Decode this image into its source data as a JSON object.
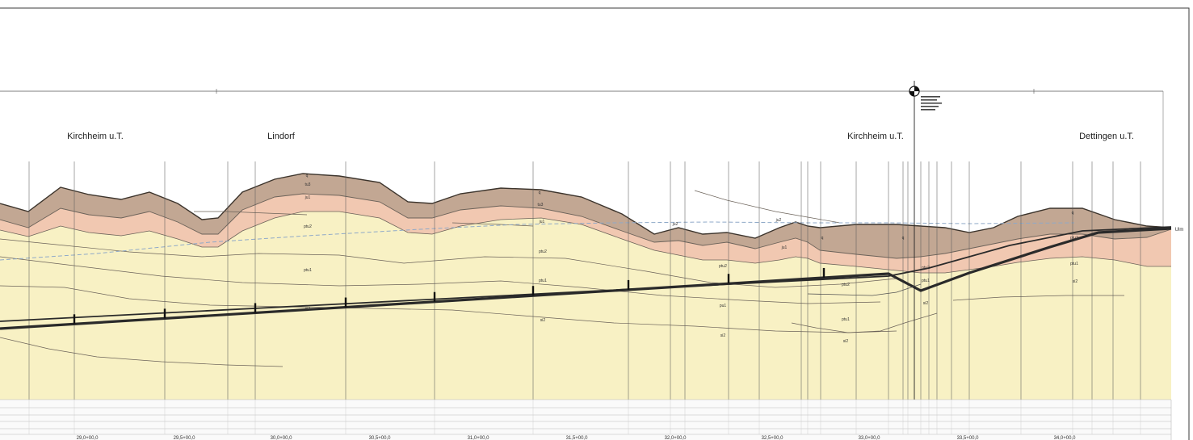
{
  "places": [
    {
      "id": "kirchheim-1",
      "name": "Kirchheim u.T."
    },
    {
      "id": "lindorf",
      "name": "Lindorf"
    },
    {
      "id": "kirchheim-2",
      "name": "Kirchheim u.T."
    },
    {
      "id": "dettingen",
      "name": "Dettingen u.T."
    }
  ],
  "chainage_labels": [
    "29,0+00,0",
    "29,5+00,0",
    "30,0+00,0",
    "30,5+00,0",
    "31,0+00,0",
    "31,5+00,0",
    "32,0+00,0",
    "32,5+00,0",
    "33,0+00,0",
    "33,5+00,0",
    "34,0+00,0"
  ],
  "layer_labels": [
    {
      "id": "l1",
      "text": "q"
    },
    {
      "id": "l2",
      "text": "tu3"
    },
    {
      "id": "l3",
      "text": "ju1"
    },
    {
      "id": "l4",
      "text": "ptu2"
    },
    {
      "id": "l5",
      "text": "ptu1"
    },
    {
      "id": "l6",
      "text": "si2"
    },
    {
      "id": "l7",
      "text": "q"
    },
    {
      "id": "l8",
      "text": "tu3"
    },
    {
      "id": "l9",
      "text": "ju1"
    },
    {
      "id": "l10",
      "text": "ptu2"
    },
    {
      "id": "l11",
      "text": "ptu1"
    },
    {
      "id": "l12",
      "text": "si2"
    },
    {
      "id": "l13",
      "text": "ju2"
    },
    {
      "id": "l14",
      "text": "ptu2"
    },
    {
      "id": "l15",
      "text": "pu1"
    },
    {
      "id": "l16",
      "text": "si2"
    },
    {
      "id": "l17",
      "text": "ju2"
    },
    {
      "id": "l18",
      "text": "q"
    },
    {
      "id": "l19",
      "text": "ju1"
    },
    {
      "id": "l20",
      "text": "q"
    },
    {
      "id": "l21",
      "text": "ptu2"
    },
    {
      "id": "l22",
      "text": "ptu1"
    },
    {
      "id": "l23",
      "text": "si2"
    },
    {
      "id": "l24",
      "text": "ptu2"
    },
    {
      "id": "l25",
      "text": "ptu1"
    },
    {
      "id": "l26",
      "text": "si2"
    },
    {
      "id": "l27",
      "text": "q"
    },
    {
      "id": "l28",
      "text": "ptu2"
    },
    {
      "id": "l29",
      "text": "ptu1"
    },
    {
      "id": "l30",
      "text": "si2"
    }
  ],
  "endpoint_label": "Ulm",
  "colors": {
    "background": "#ffffff",
    "frame": "#3a3a3a",
    "quaternary": "#c2a793",
    "upper_layer": "#f1c8b1",
    "lower_layer": "#f8f1c4",
    "geology_line": "#6b6259",
    "track": "#2a2a2a",
    "groundwater": "#8fa9c8",
    "table_line": "#b8b8b8",
    "label": "#222222"
  }
}
